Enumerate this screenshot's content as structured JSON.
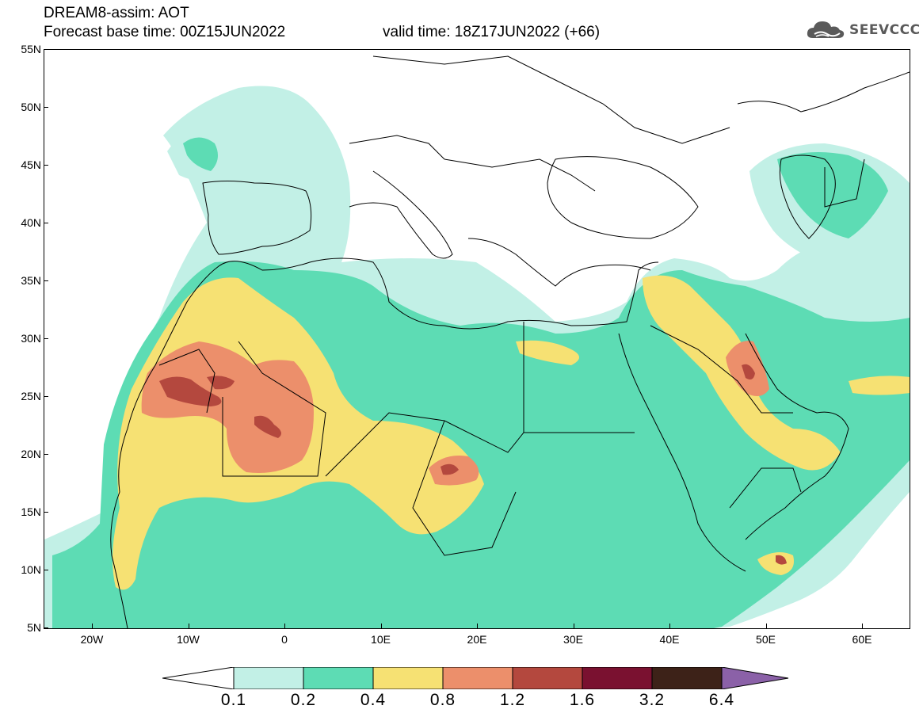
{
  "header": {
    "line1": "DREAM8-assim: AOT",
    "line2": "Forecast base time: 00Z15JUN2022",
    "valid": "valid time: 18Z17JUN2022 (+66)",
    "logo": "SEEVCCC"
  },
  "map": {
    "lat_labels": [
      "55N",
      "50N",
      "45N",
      "40N",
      "35N",
      "30N",
      "25N",
      "20N",
      "15N",
      "10N",
      "5N"
    ],
    "lon_labels": [
      "20W",
      "10W",
      "0",
      "10E",
      "20E",
      "30E",
      "40E",
      "50E",
      "60E"
    ],
    "colors": {
      "c01": "#c2f0e6",
      "c02": "#5ddcb4",
      "c04": "#f6e173",
      "c08": "#ec8f6b",
      "c12": "#b4483e",
      "c16": "#7a1130",
      "c32": "#3d2218",
      "c64": "#8b61a8",
      "coast": "#000000"
    }
  },
  "colorbar": {
    "labels": [
      "0.1",
      "0.2",
      "0.4",
      "0.8",
      "1.2",
      "1.6",
      "3.2",
      "6.4"
    ]
  }
}
